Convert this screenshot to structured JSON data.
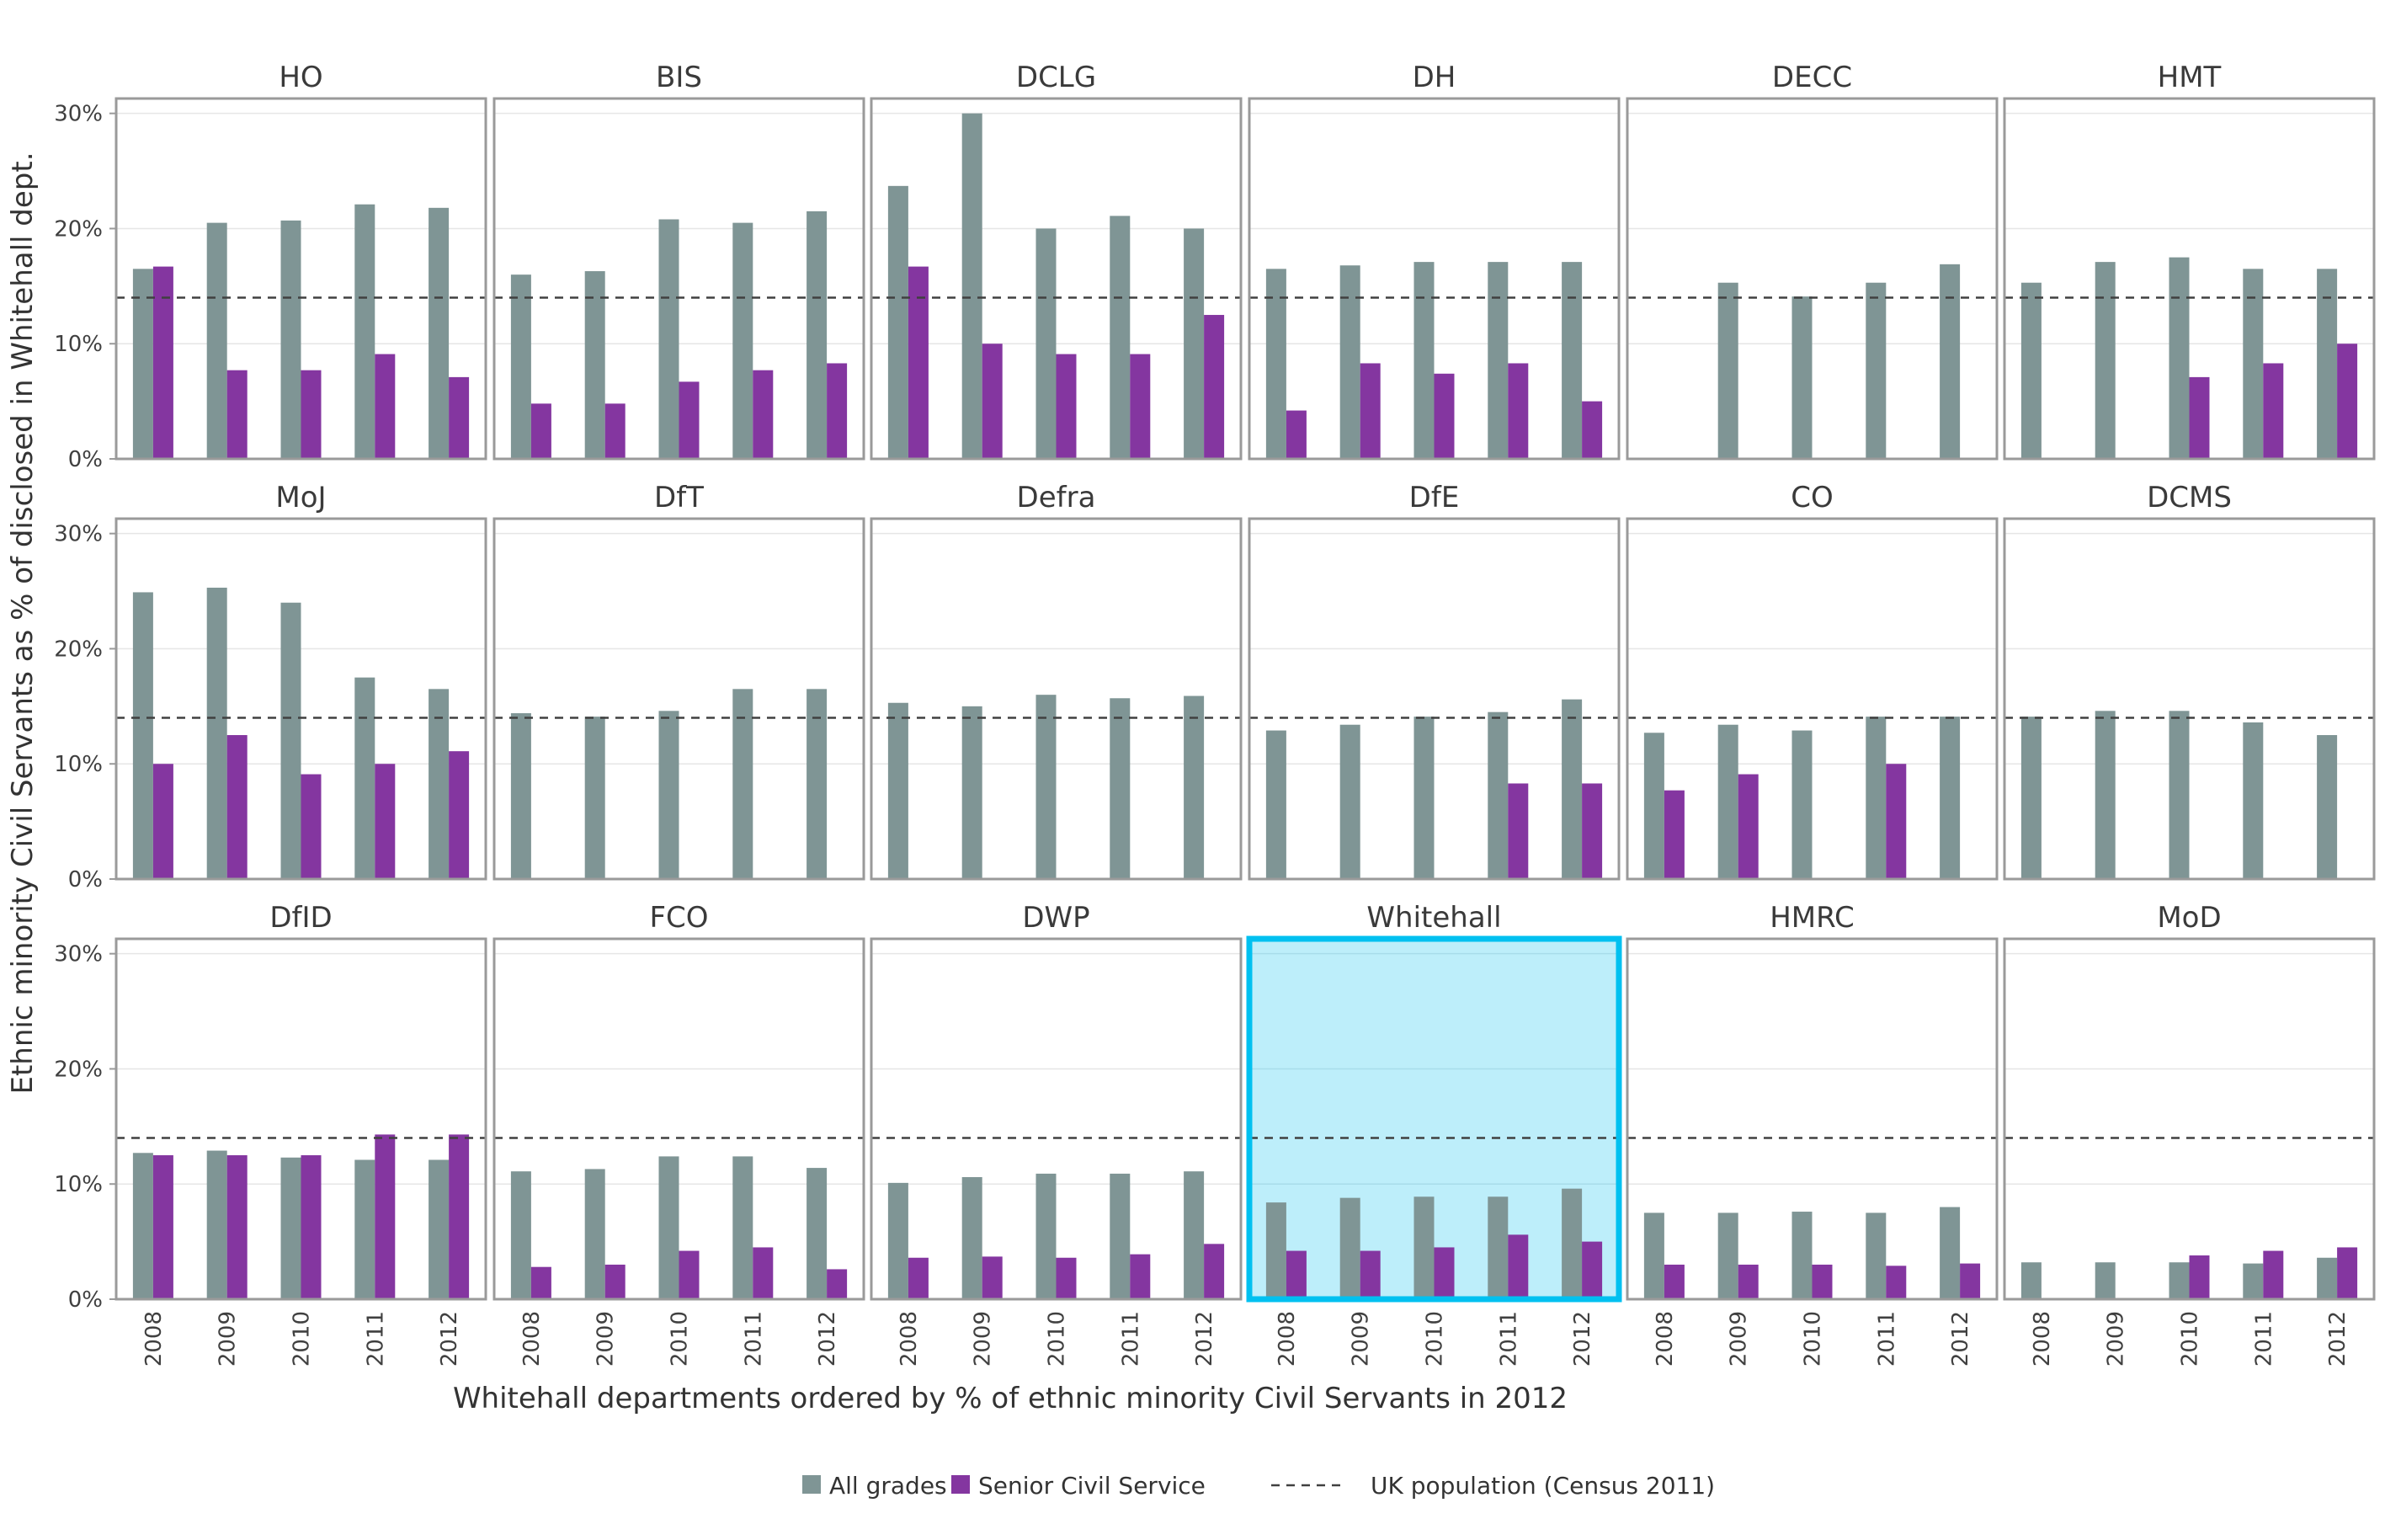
{
  "chart_data": {
    "type": "bar",
    "xlabel": "Whitehall departments ordered by % of ethnic minority Civil Servants in 2012",
    "ylabel": "Ethnic minority Civil Servants as % of disclosed in Whitehall dept.",
    "categories": [
      "2008",
      "2009",
      "2010",
      "2011",
      "2012"
    ],
    "ylim": [
      0,
      31
    ],
    "yticks": [
      "0%",
      "10%",
      "20%",
      "30%"
    ],
    "reference_line": {
      "name": "UK population (Census 2011)",
      "value": 14
    },
    "legend": {
      "placement": "bottom",
      "entries": [
        {
          "name": "All grades",
          "color": "#7f9595"
        },
        {
          "name": "Senior Civil Service",
          "color": "#8436a0"
        },
        {
          "name": "UK population (Census 2011)",
          "style": "dashed",
          "color": "#404040"
        }
      ]
    },
    "highlight": {
      "panel": "Whitehall",
      "border_color": "#00c0f0",
      "fill_color": "#bdeefa"
    },
    "panels": [
      {
        "name": "HO",
        "all_grades": [
          16.5,
          20.5,
          20.7,
          22.1,
          21.8
        ],
        "senior": [
          16.7,
          7.7,
          7.7,
          9.1,
          7.1
        ]
      },
      {
        "name": "BIS",
        "all_grades": [
          16.0,
          16.3,
          20.8,
          20.5,
          21.5
        ],
        "senior": [
          4.8,
          4.8,
          6.7,
          7.7,
          8.3
        ]
      },
      {
        "name": "DCLG",
        "all_grades": [
          23.7,
          30.0,
          20.0,
          21.1,
          20.0
        ],
        "senior": [
          16.7,
          10.0,
          9.1,
          9.1,
          12.5
        ]
      },
      {
        "name": "DH",
        "all_grades": [
          16.5,
          16.8,
          17.1,
          17.1,
          17.1
        ],
        "senior": [
          4.2,
          8.3,
          7.4,
          8.3,
          5.0
        ]
      },
      {
        "name": "DECC",
        "all_grades": [
          null,
          15.3,
          14.1,
          15.3,
          16.9
        ],
        "senior": [
          null,
          null,
          null,
          null,
          null
        ]
      },
      {
        "name": "HMT",
        "all_grades": [
          15.3,
          17.1,
          17.5,
          16.5,
          16.5
        ],
        "senior": [
          null,
          null,
          7.1,
          8.3,
          10.0
        ]
      },
      {
        "name": "MoJ",
        "all_grades": [
          24.9,
          25.3,
          24.0,
          17.5,
          16.5
        ],
        "senior": [
          10.0,
          12.5,
          9.1,
          10.0,
          11.1
        ]
      },
      {
        "name": "DfT",
        "all_grades": [
          14.4,
          14.1,
          14.6,
          16.5,
          16.5
        ],
        "senior": [
          null,
          null,
          null,
          null,
          null
        ]
      },
      {
        "name": "Defra",
        "all_grades": [
          15.3,
          15.0,
          16.0,
          15.7,
          15.9
        ],
        "senior": [
          null,
          null,
          null,
          null,
          null
        ]
      },
      {
        "name": "DfE",
        "all_grades": [
          12.9,
          13.4,
          14.1,
          14.5,
          15.6
        ],
        "senior": [
          null,
          null,
          null,
          8.3,
          8.3
        ]
      },
      {
        "name": "CO",
        "all_grades": [
          12.7,
          13.4,
          12.9,
          14.1,
          14.1
        ],
        "senior": [
          7.7,
          9.1,
          null,
          10.0,
          null
        ]
      },
      {
        "name": "DCMS",
        "all_grades": [
          14.1,
          14.6,
          14.6,
          13.6,
          12.5
        ],
        "senior": [
          null,
          null,
          null,
          null,
          null
        ]
      },
      {
        "name": "DfID",
        "all_grades": [
          12.7,
          12.9,
          12.3,
          12.1,
          12.1
        ],
        "senior": [
          12.5,
          12.5,
          12.5,
          14.3,
          14.3
        ]
      },
      {
        "name": "FCO",
        "all_grades": [
          11.1,
          11.3,
          12.4,
          12.4,
          11.4
        ],
        "senior": [
          2.8,
          3.0,
          4.2,
          4.5,
          2.6
        ]
      },
      {
        "name": "DWP",
        "all_grades": [
          10.1,
          10.6,
          10.9,
          10.9,
          11.1
        ],
        "senior": [
          3.6,
          3.7,
          3.6,
          3.9,
          4.8
        ]
      },
      {
        "name": "Whitehall",
        "all_grades": [
          8.4,
          8.8,
          8.9,
          8.9,
          9.6
        ],
        "senior": [
          4.2,
          4.2,
          4.5,
          5.6,
          5.0
        ]
      },
      {
        "name": "HMRC",
        "all_grades": [
          7.5,
          7.5,
          7.6,
          7.5,
          8.0
        ],
        "senior": [
          3.0,
          3.0,
          3.0,
          2.9,
          3.1
        ]
      },
      {
        "name": "MoD",
        "all_grades": [
          3.2,
          3.2,
          3.2,
          3.1,
          3.6
        ],
        "senior": [
          null,
          null,
          3.8,
          4.2,
          4.5
        ]
      }
    ]
  }
}
